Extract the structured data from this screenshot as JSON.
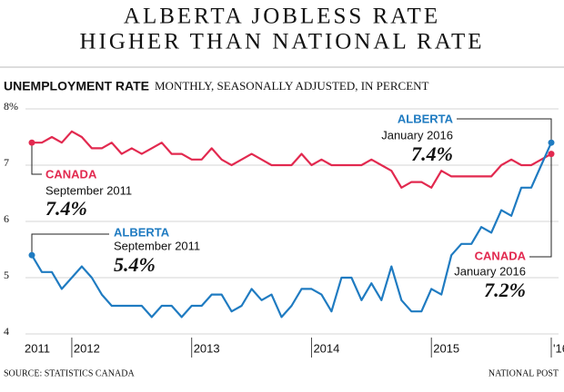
{
  "chart_data": {
    "type": "line",
    "title": [
      "ALBERTA JOBLESS RATE",
      "HIGHER THAN NATIONAL RATE"
    ],
    "ylabel": "UNEMPLOYMENT RATE",
    "subtitle": "MONTHLY, SEASONALLY ADJUSTED, IN PERCENT",
    "source": "SOURCE: STATISTICS CANADA",
    "credit": "NATIONAL POST",
    "categories": [
      "2011",
      null,
      null,
      null,
      "2012",
      null,
      null,
      null,
      null,
      null,
      null,
      null,
      null,
      null,
      null,
      null,
      "2013",
      null,
      null,
      null,
      null,
      null,
      null,
      null,
      null,
      null,
      null,
      null,
      "2014",
      null,
      null,
      null,
      null,
      null,
      null,
      null,
      null,
      null,
      null,
      null,
      "2015",
      null,
      null,
      null,
      null,
      null,
      null,
      null,
      null,
      null,
      null,
      null,
      "'16"
    ],
    "ylim": [
      4,
      8
    ],
    "yticks": [
      4,
      5,
      6,
      7,
      {
        "value": 8,
        "label": "8%"
      }
    ],
    "grid": true,
    "series": [
      {
        "name": "CANADA",
        "color": "#e2294f",
        "values": [
          7.4,
          7.4,
          7.5,
          7.4,
          7.6,
          7.5,
          7.3,
          7.3,
          7.4,
          7.2,
          7.3,
          7.2,
          7.3,
          7.4,
          7.2,
          7.2,
          7.1,
          7.1,
          7.3,
          7.1,
          7.0,
          7.1,
          7.2,
          7.1,
          7.0,
          7.0,
          7.0,
          7.2,
          7.0,
          7.1,
          7.0,
          7.0,
          7.0,
          7.0,
          7.1,
          7.0,
          6.9,
          6.6,
          6.7,
          6.7,
          6.6,
          6.9,
          6.8,
          6.8,
          6.8,
          6.8,
          6.8,
          7.0,
          7.1,
          7.0,
          7.0,
          7.1,
          7.2
        ],
        "annotations": [
          {
            "date": "September 2011",
            "value_label": "7.4%"
          },
          {
            "date": "January 2016",
            "value_label": "7.2%"
          }
        ]
      },
      {
        "name": "ALBERTA",
        "color": "#1f7bc1",
        "values": [
          5.4,
          5.1,
          5.1,
          4.8,
          5.0,
          5.2,
          5.0,
          4.7,
          4.5,
          4.5,
          4.5,
          4.5,
          4.3,
          4.5,
          4.5,
          4.3,
          4.5,
          4.5,
          4.7,
          4.7,
          4.4,
          4.5,
          4.8,
          4.6,
          4.7,
          4.3,
          4.5,
          4.8,
          4.8,
          4.7,
          4.4,
          5.0,
          5.0,
          4.6,
          4.9,
          4.6,
          5.2,
          4.6,
          4.4,
          4.4,
          4.8,
          4.7,
          5.4,
          5.6,
          5.6,
          5.9,
          5.8,
          6.2,
          6.1,
          6.6,
          6.6,
          7.0,
          7.4
        ],
        "annotations": [
          {
            "date": "September 2011",
            "value_label": "5.4%"
          },
          {
            "date": "January 2016",
            "value_label": "7.4%"
          }
        ]
      }
    ]
  }
}
